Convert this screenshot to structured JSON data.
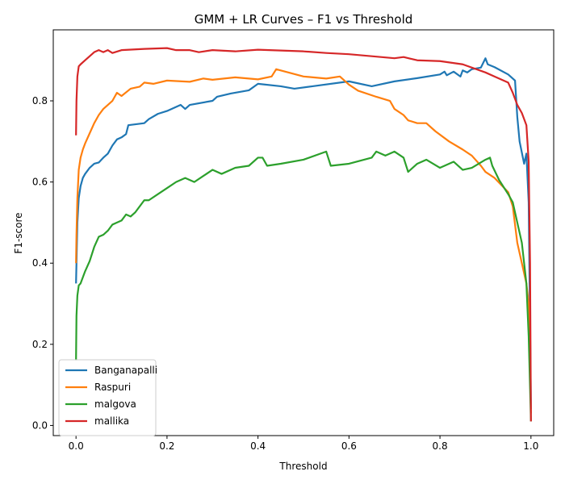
{
  "chart_data": {
    "type": "line",
    "title": "GMM + LR Curves – F1 vs Threshold",
    "xlabel": "Threshold",
    "ylabel": "F1-score",
    "xlim": [
      -0.05,
      1.05
    ],
    "ylim": [
      -0.025,
      0.975
    ],
    "xticks": [
      0.0,
      0.2,
      0.4,
      0.6,
      0.8,
      1.0
    ],
    "xtick_labels": [
      "0.0",
      "0.2",
      "0.4",
      "0.6",
      "0.8",
      "1.0"
    ],
    "yticks": [
      0.0,
      0.2,
      0.4,
      0.6,
      0.8
    ],
    "ytick_labels": [
      "0.0",
      "0.2",
      "0.4",
      "0.6",
      "0.8"
    ],
    "grid": false,
    "legend_position": "lower-left",
    "series": [
      {
        "name": "Banganapalli",
        "color": "#1f77b4",
        "points": [
          [
            0.0,
            0.35
          ],
          [
            0.001,
            0.4
          ],
          [
            0.003,
            0.5
          ],
          [
            0.006,
            0.56
          ],
          [
            0.01,
            0.59
          ],
          [
            0.015,
            0.61
          ],
          [
            0.02,
            0.62
          ],
          [
            0.03,
            0.635
          ],
          [
            0.04,
            0.645
          ],
          [
            0.05,
            0.648
          ],
          [
            0.06,
            0.66
          ],
          [
            0.07,
            0.67
          ],
          [
            0.08,
            0.69
          ],
          [
            0.09,
            0.705
          ],
          [
            0.1,
            0.71
          ],
          [
            0.11,
            0.718
          ],
          [
            0.115,
            0.74
          ],
          [
            0.15,
            0.745
          ],
          [
            0.16,
            0.755
          ],
          [
            0.18,
            0.768
          ],
          [
            0.2,
            0.775
          ],
          [
            0.23,
            0.79
          ],
          [
            0.24,
            0.78
          ],
          [
            0.25,
            0.79
          ],
          [
            0.3,
            0.8
          ],
          [
            0.31,
            0.81
          ],
          [
            0.34,
            0.818
          ],
          [
            0.38,
            0.826
          ],
          [
            0.4,
            0.842
          ],
          [
            0.45,
            0.836
          ],
          [
            0.48,
            0.83
          ],
          [
            0.52,
            0.836
          ],
          [
            0.6,
            0.848
          ],
          [
            0.65,
            0.836
          ],
          [
            0.7,
            0.848
          ],
          [
            0.75,
            0.856
          ],
          [
            0.8,
            0.865
          ],
          [
            0.81,
            0.872
          ],
          [
            0.815,
            0.863
          ],
          [
            0.83,
            0.872
          ],
          [
            0.845,
            0.86
          ],
          [
            0.85,
            0.875
          ],
          [
            0.86,
            0.87
          ],
          [
            0.87,
            0.878
          ],
          [
            0.89,
            0.882
          ],
          [
            0.9,
            0.905
          ],
          [
            0.905,
            0.89
          ],
          [
            0.92,
            0.883
          ],
          [
            0.95,
            0.865
          ],
          [
            0.965,
            0.85
          ],
          [
            0.97,
            0.76
          ],
          [
            0.975,
            0.7
          ],
          [
            0.985,
            0.645
          ],
          [
            0.99,
            0.67
          ],
          [
            0.995,
            0.55
          ],
          [
            0.998,
            0.25
          ],
          [
            1.0,
            0.04
          ]
        ]
      },
      {
        "name": "Raspuri",
        "color": "#ff7f0e",
        "points": [
          [
            0.0,
            0.4
          ],
          [
            0.001,
            0.47
          ],
          [
            0.003,
            0.56
          ],
          [
            0.006,
            0.63
          ],
          [
            0.01,
            0.66
          ],
          [
            0.015,
            0.68
          ],
          [
            0.02,
            0.695
          ],
          [
            0.03,
            0.72
          ],
          [
            0.04,
            0.745
          ],
          [
            0.05,
            0.765
          ],
          [
            0.06,
            0.78
          ],
          [
            0.07,
            0.79
          ],
          [
            0.08,
            0.8
          ],
          [
            0.09,
            0.82
          ],
          [
            0.1,
            0.812
          ],
          [
            0.12,
            0.83
          ],
          [
            0.14,
            0.835
          ],
          [
            0.15,
            0.845
          ],
          [
            0.17,
            0.842
          ],
          [
            0.2,
            0.85
          ],
          [
            0.25,
            0.847
          ],
          [
            0.28,
            0.855
          ],
          [
            0.3,
            0.852
          ],
          [
            0.35,
            0.858
          ],
          [
            0.4,
            0.853
          ],
          [
            0.43,
            0.86
          ],
          [
            0.44,
            0.878
          ],
          [
            0.5,
            0.86
          ],
          [
            0.55,
            0.855
          ],
          [
            0.58,
            0.86
          ],
          [
            0.6,
            0.84
          ],
          [
            0.62,
            0.825
          ],
          [
            0.66,
            0.81
          ],
          [
            0.69,
            0.8
          ],
          [
            0.7,
            0.78
          ],
          [
            0.72,
            0.765
          ],
          [
            0.73,
            0.752
          ],
          [
            0.75,
            0.745
          ],
          [
            0.77,
            0.745
          ],
          [
            0.79,
            0.725
          ],
          [
            0.82,
            0.7
          ],
          [
            0.85,
            0.68
          ],
          [
            0.87,
            0.665
          ],
          [
            0.89,
            0.64
          ],
          [
            0.9,
            0.625
          ],
          [
            0.92,
            0.61
          ],
          [
            0.95,
            0.575
          ],
          [
            0.96,
            0.54
          ],
          [
            0.97,
            0.45
          ],
          [
            0.98,
            0.4
          ],
          [
            0.99,
            0.35
          ],
          [
            0.995,
            0.3
          ],
          [
            1.0,
            0.03
          ]
        ]
      },
      {
        "name": "malgova",
        "color": "#2ca02c",
        "points": [
          [
            0.0,
            0.16
          ],
          [
            0.001,
            0.27
          ],
          [
            0.003,
            0.32
          ],
          [
            0.006,
            0.345
          ],
          [
            0.01,
            0.35
          ],
          [
            0.02,
            0.38
          ],
          [
            0.03,
            0.405
          ],
          [
            0.04,
            0.44
          ],
          [
            0.05,
            0.465
          ],
          [
            0.06,
            0.47
          ],
          [
            0.07,
            0.48
          ],
          [
            0.08,
            0.495
          ],
          [
            0.09,
            0.5
          ],
          [
            0.1,
            0.505
          ],
          [
            0.11,
            0.52
          ],
          [
            0.12,
            0.515
          ],
          [
            0.13,
            0.525
          ],
          [
            0.15,
            0.555
          ],
          [
            0.16,
            0.555
          ],
          [
            0.18,
            0.57
          ],
          [
            0.2,
            0.585
          ],
          [
            0.22,
            0.6
          ],
          [
            0.24,
            0.61
          ],
          [
            0.26,
            0.6
          ],
          [
            0.28,
            0.615
          ],
          [
            0.3,
            0.63
          ],
          [
            0.32,
            0.62
          ],
          [
            0.35,
            0.635
          ],
          [
            0.38,
            0.64
          ],
          [
            0.4,
            0.66
          ],
          [
            0.41,
            0.66
          ],
          [
            0.42,
            0.64
          ],
          [
            0.45,
            0.645
          ],
          [
            0.5,
            0.655
          ],
          [
            0.55,
            0.675
          ],
          [
            0.56,
            0.64
          ],
          [
            0.6,
            0.645
          ],
          [
            0.65,
            0.66
          ],
          [
            0.66,
            0.675
          ],
          [
            0.68,
            0.665
          ],
          [
            0.7,
            0.675
          ],
          [
            0.72,
            0.66
          ],
          [
            0.73,
            0.625
          ],
          [
            0.75,
            0.645
          ],
          [
            0.77,
            0.655
          ],
          [
            0.8,
            0.635
          ],
          [
            0.83,
            0.65
          ],
          [
            0.85,
            0.63
          ],
          [
            0.87,
            0.635
          ],
          [
            0.9,
            0.655
          ],
          [
            0.91,
            0.66
          ],
          [
            0.915,
            0.64
          ],
          [
            0.93,
            0.605
          ],
          [
            0.95,
            0.57
          ],
          [
            0.96,
            0.55
          ],
          [
            0.97,
            0.5
          ],
          [
            0.98,
            0.45
          ],
          [
            0.99,
            0.35
          ],
          [
            0.995,
            0.22
          ],
          [
            1.0,
            0.01
          ]
        ]
      },
      {
        "name": "mallika",
        "color": "#d62728",
        "points": [
          [
            0.0,
            0.715
          ],
          [
            0.001,
            0.8
          ],
          [
            0.003,
            0.86
          ],
          [
            0.006,
            0.885
          ],
          [
            0.01,
            0.89
          ],
          [
            0.02,
            0.9
          ],
          [
            0.03,
            0.91
          ],
          [
            0.04,
            0.92
          ],
          [
            0.05,
            0.925
          ],
          [
            0.06,
            0.92
          ],
          [
            0.07,
            0.925
          ],
          [
            0.08,
            0.918
          ],
          [
            0.1,
            0.925
          ],
          [
            0.15,
            0.928
          ],
          [
            0.2,
            0.93
          ],
          [
            0.22,
            0.925
          ],
          [
            0.25,
            0.925
          ],
          [
            0.27,
            0.92
          ],
          [
            0.3,
            0.925
          ],
          [
            0.35,
            0.922
          ],
          [
            0.4,
            0.926
          ],
          [
            0.5,
            0.922
          ],
          [
            0.55,
            0.918
          ],
          [
            0.6,
            0.915
          ],
          [
            0.65,
            0.91
          ],
          [
            0.7,
            0.905
          ],
          [
            0.72,
            0.908
          ],
          [
            0.75,
            0.9
          ],
          [
            0.8,
            0.898
          ],
          [
            0.85,
            0.89
          ],
          [
            0.9,
            0.87
          ],
          [
            0.92,
            0.86
          ],
          [
            0.95,
            0.845
          ],
          [
            0.96,
            0.82
          ],
          [
            0.97,
            0.79
          ],
          [
            0.98,
            0.77
          ],
          [
            0.985,
            0.755
          ],
          [
            0.99,
            0.74
          ],
          [
            0.995,
            0.65
          ],
          [
            0.998,
            0.4
          ],
          [
            1.0,
            0.01
          ]
        ]
      }
    ]
  }
}
